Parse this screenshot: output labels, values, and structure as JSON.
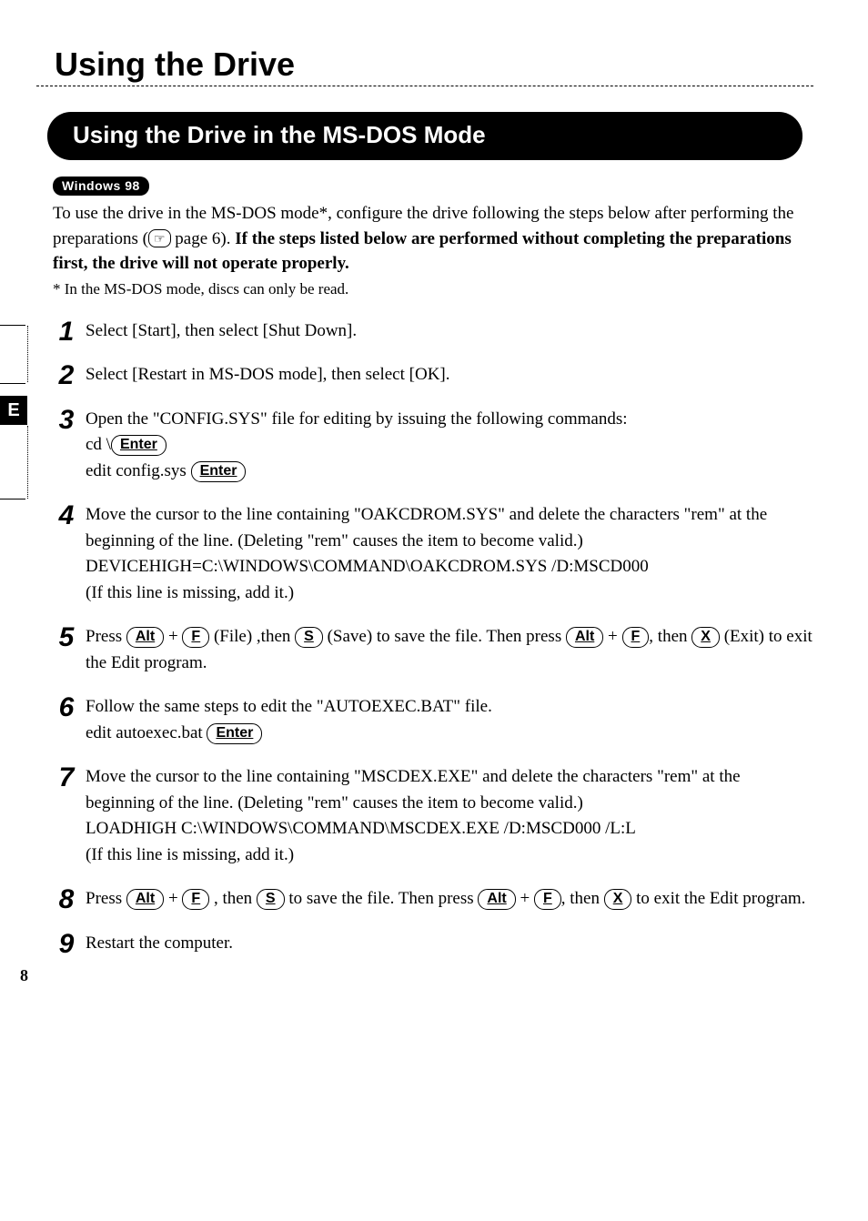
{
  "page": {
    "title": "Using the Drive",
    "number": "8",
    "side_tab": "E"
  },
  "section": {
    "heading": "Using the Drive in the MS-DOS Mode",
    "os_badge": "Windows 98",
    "intro_plain1": "To use the drive in the MS-DOS mode*, configure the drive following the steps below after performing the preparations (",
    "pointer_label": "☞",
    "intro_pageref": " page 6).  ",
    "intro_bold": "If the steps listed below are performed without completing the preparations first, the drive will not operate properly.",
    "footnote": "* In the MS-DOS mode, discs can only be read."
  },
  "keys": {
    "enter": "Enter",
    "alt": "Alt",
    "f": "F",
    "s": "S",
    "x": "X"
  },
  "steps": {
    "n1": "1",
    "s1": "Select [Start], then select [Shut Down].",
    "n2": "2",
    "s2": "Select [Restart in MS-DOS mode], then select [OK].",
    "n3": "3",
    "s3a": "Open the \"CONFIG.SYS\" file for editing by issuing the following commands:",
    "s3b": "cd \\",
    "s3c": "edit config.sys ",
    "n4": "4",
    "s4a": "Move the cursor to the line containing \"OAKCDROM.SYS\" and delete the characters \"rem\" at the beginning of the line. (Deleting \"rem\" causes the item to become valid.)",
    "s4b": "DEVICEHIGH=C:\\WINDOWS\\COMMAND\\OAKCDROM.SYS /D:MSCD000",
    "s4c": "(If this line is missing, add it.)",
    "n5": "5",
    "s5a": "Press ",
    "s5b": " + ",
    "s5c": " (File) ,then ",
    "s5d": " (Save) to save the file.  Then press  ",
    "s5e": " + ",
    "s5f": ", then ",
    "s5g": " (Exit) to exit the Edit program.",
    "n6": "6",
    "s6a": "Follow the same steps to edit the \"AUTOEXEC.BAT\" file.",
    "s6b": "edit autoexec.bat ",
    "n7": "7",
    "s7a": "Move the cursor to the line containing \"MSCDEX.EXE\" and delete the characters \"rem\" at the beginning of the line. (Deleting \"rem\" causes the item to become valid.)",
    "s7b": "LOADHIGH  C:\\WINDOWS\\COMMAND\\MSCDEX.EXE /D:MSCD000 /L:L",
    "s7c": "(If this line is missing, add it.)",
    "n8": "8",
    "s8a": "Press ",
    "s8b": " + ",
    "s8c": " , then ",
    "s8d": " to save the file.  Then press ",
    "s8e": " + ",
    "s8f": ", then ",
    "s8g": " to exit the Edit program.",
    "n9": "9",
    "s9": "Restart the computer."
  }
}
